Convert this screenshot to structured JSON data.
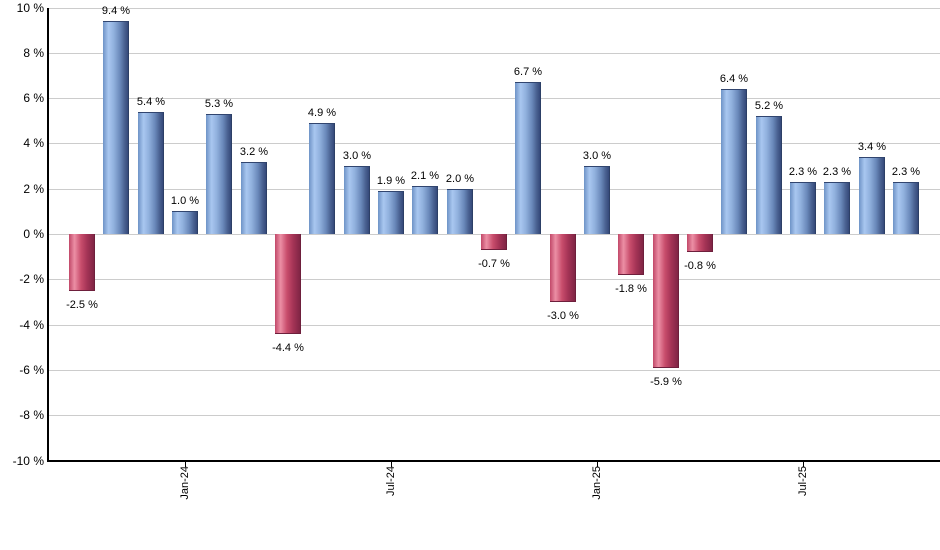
{
  "chart_data": {
    "type": "bar",
    "title": "",
    "xlabel": "",
    "ylabel": "",
    "ylim": [
      -10,
      10
    ],
    "y_tick_step": 2,
    "grid": "horizontal",
    "legend_position": "none",
    "y_tick_labels": [
      "10 %",
      "8 %",
      "6 %",
      "4 %",
      "2 %",
      "0 %",
      "-2 %",
      "-4 %",
      "-6 %",
      "-8 %",
      "-10 %"
    ],
    "y_tick_values": [
      10,
      8,
      6,
      4,
      2,
      0,
      -2,
      -4,
      -6,
      -8,
      -10
    ],
    "bars": [
      {
        "value": -2.5,
        "label": "-2.5 %"
      },
      {
        "value": 9.4,
        "label": "9.4 %"
      },
      {
        "value": 5.4,
        "label": "5.4 %"
      },
      {
        "value": 1.0,
        "label": "1.0 %"
      },
      {
        "value": 5.3,
        "label": "5.3 %"
      },
      {
        "value": 3.2,
        "label": "3.2 %"
      },
      {
        "value": -4.4,
        "label": "-4.4 %"
      },
      {
        "value": 4.9,
        "label": "4.9 %"
      },
      {
        "value": 3.0,
        "label": "3.0 %"
      },
      {
        "value": 1.9,
        "label": "1.9 %"
      },
      {
        "value": 2.1,
        "label": "2.1 %"
      },
      {
        "value": 2.0,
        "label": "2.0 %"
      },
      {
        "value": -0.7,
        "label": "-0.7 %"
      },
      {
        "value": 6.7,
        "label": "6.7 %"
      },
      {
        "value": -3.0,
        "label": "-3.0 %"
      },
      {
        "value": 3.0,
        "label": "3.0 %"
      },
      {
        "value": -1.8,
        "label": "-1.8 %"
      },
      {
        "value": -5.9,
        "label": "-5.9 %"
      },
      {
        "value": -0.8,
        "label": "-0.8 %"
      },
      {
        "value": 6.4,
        "label": "6.4 %"
      },
      {
        "value": 5.2,
        "label": "5.2 %"
      },
      {
        "value": 2.3,
        "label": "2.3 %"
      },
      {
        "value": 2.3,
        "label": "2.3 %"
      },
      {
        "value": 3.4,
        "label": "3.4 %"
      },
      {
        "value": 2.3,
        "label": "2.3 %"
      }
    ],
    "x_ticks": [
      {
        "bar_index": 3,
        "label": "Jan-24"
      },
      {
        "bar_index": 9,
        "label": "Jul-24"
      },
      {
        "bar_index": 15,
        "label": "Jan-25"
      },
      {
        "bar_index": 21,
        "label": "Jul-25"
      }
    ],
    "colors": {
      "positive_bar": "#7aa0d6",
      "positive_bar_gradient": [
        "#6e93c6",
        "#a9c7f0",
        "#92b2df",
        "#6a89ba",
        "#35497a"
      ],
      "negative_bar": "#c64a6b",
      "negative_bar_gradient": [
        "#c14868",
        "#ec8fa5",
        "#c84d6c",
        "#a53456",
        "#802545"
      ],
      "gridline": "#cccccc",
      "axis": "#000000",
      "label_text": "#000000",
      "background": "#ffffff"
    }
  }
}
